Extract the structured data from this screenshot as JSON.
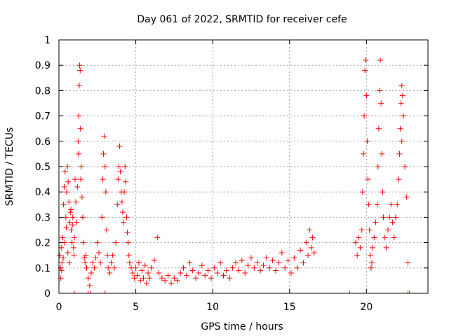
{
  "chart_data": {
    "type": "scatter",
    "title": "Day 061 of 2022, SRMTID for receiver cefe",
    "xlabel": "GPS time / hours",
    "ylabel": "SRMTID / TECUs",
    "xlim": [
      0,
      24
    ],
    "ylim": [
      0,
      1
    ],
    "x_ticks": [
      0,
      5,
      10,
      15,
      20
    ],
    "y_ticks": [
      0,
      0.1,
      0.2,
      0.3,
      0.4,
      0.5,
      0.6,
      0.7,
      0.8,
      0.9,
      1
    ],
    "x_tick_labels": [
      "0",
      "5",
      "10",
      "15",
      "20"
    ],
    "y_tick_labels": [
      "0",
      "0.1",
      "0.2",
      "0.3",
      "0.4",
      "0.5",
      "0.6",
      "0.7",
      "0.8",
      "0.9",
      "1"
    ],
    "grid": true,
    "marker": "plus",
    "color": "#ff0000",
    "series": [
      {
        "name": "SRMTID",
        "points": [
          [
            0.05,
            0.15
          ],
          [
            0.1,
            0.1
          ],
          [
            0.15,
            0.18
          ],
          [
            0.2,
            0.12
          ],
          [
            0.25,
            0.22
          ],
          [
            0.3,
            0.35
          ],
          [
            0.35,
            0.42
          ],
          [
            0.4,
            0.48
          ],
          [
            0.45,
            0.3
          ],
          [
            0.5,
            0.4
          ],
          [
            0.55,
            0.5
          ],
          [
            0.6,
            0.44
          ],
          [
            0.65,
            0.36
          ],
          [
            0.7,
            0.28
          ],
          [
            0.75,
            0.32
          ],
          [
            0.8,
            0.25
          ],
          [
            0.85,
            0.2
          ],
          [
            0.9,
            0.3
          ],
          [
            0.95,
            0.18
          ],
          [
            1.0,
            0.22
          ],
          [
            0.12,
            0.06
          ],
          [
            0.18,
            0.09
          ],
          [
            0.28,
            0.14
          ],
          [
            0.38,
            0.2
          ],
          [
            0.48,
            0.26
          ],
          [
            0.58,
            0.16
          ],
          [
            0.68,
            0.12
          ],
          [
            0.78,
            0.33
          ],
          [
            0.88,
            0.27
          ],
          [
            0.98,
            0.15
          ],
          [
            1.05,
            0.45
          ],
          [
            1.1,
            0.36
          ],
          [
            1.15,
            0.28
          ],
          [
            1.2,
            0.42
          ],
          [
            1.25,
            0.6
          ],
          [
            1.3,
            0.7
          ],
          [
            1.32,
            0.82
          ],
          [
            1.35,
            0.9
          ],
          [
            1.38,
            0.88
          ],
          [
            1.4,
            0.65
          ],
          [
            1.45,
            0.5
          ],
          [
            1.5,
            0.38
          ],
          [
            1.55,
            0.3
          ],
          [
            1.6,
            0.2
          ],
          [
            1.65,
            0.14
          ],
          [
            1.7,
            0.12
          ],
          [
            1.75,
            0.15
          ],
          [
            1.8,
            0.1
          ],
          [
            1.28,
            0.55
          ],
          [
            1.42,
            0.45
          ],
          [
            1.9,
            0.06
          ],
          [
            2.0,
            0.03
          ],
          [
            2.1,
            0.08
          ],
          [
            2.2,
            0.12
          ],
          [
            2.3,
            0.1
          ],
          [
            2.4,
            0.14
          ],
          [
            2.5,
            0.2
          ],
          [
            2.6,
            0.16
          ],
          [
            2.7,
            0.12
          ],
          [
            2.8,
            0.3
          ],
          [
            2.85,
            0.45
          ],
          [
            2.9,
            0.55
          ],
          [
            2.95,
            0.62
          ],
          [
            3.0,
            0.5
          ],
          [
            3.05,
            0.4
          ],
          [
            3.1,
            0.25
          ],
          [
            3.15,
            0.15
          ],
          [
            3.2,
            0.1
          ],
          [
            3.3,
            0.08
          ],
          [
            3.4,
            0.12
          ],
          [
            3.5,
            0.15
          ],
          [
            3.6,
            0.1
          ],
          [
            3.7,
            0.2
          ],
          [
            3.8,
            0.35
          ],
          [
            3.85,
            0.45
          ],
          [
            3.9,
            0.5
          ],
          [
            3.95,
            0.58
          ],
          [
            4.0,
            0.48
          ],
          [
            4.05,
            0.4
          ],
          [
            4.1,
            0.36
          ],
          [
            4.15,
            0.32
          ],
          [
            4.2,
            0.28
          ],
          [
            4.25,
            0.4
          ],
          [
            4.3,
            0.5
          ],
          [
            4.35,
            0.44
          ],
          [
            4.4,
            0.3
          ],
          [
            4.45,
            0.24
          ],
          [
            4.5,
            0.2
          ],
          [
            4.55,
            0.15
          ],
          [
            4.6,
            0.12
          ],
          [
            4.7,
            0.1
          ],
          [
            4.8,
            0.08
          ],
          [
            4.9,
            0.06
          ],
          [
            5.0,
            0.1
          ],
          [
            5.1,
            0.07
          ],
          [
            5.2,
            0.12
          ],
          [
            5.3,
            0.05
          ],
          [
            5.4,
            0.09
          ],
          [
            5.5,
            0.06
          ],
          [
            5.6,
            0.11
          ],
          [
            5.7,
            0.04
          ],
          [
            5.8,
            0.08
          ],
          [
            5.9,
            0.06
          ],
          [
            6.0,
            0.1
          ],
          [
            6.2,
            0.13
          ],
          [
            6.4,
            0.22
          ],
          [
            6.5,
            0.08
          ],
          [
            6.7,
            0.06
          ],
          [
            6.9,
            0.05
          ],
          [
            7.1,
            0.07
          ],
          [
            7.3,
            0.04
          ],
          [
            7.5,
            0.06
          ],
          [
            7.7,
            0.05
          ],
          [
            7.9,
            0.08
          ],
          [
            8.1,
            0.1
          ],
          [
            8.3,
            0.07
          ],
          [
            8.5,
            0.12
          ],
          [
            8.7,
            0.09
          ],
          [
            8.9,
            0.06
          ],
          [
            9.1,
            0.08
          ],
          [
            9.3,
            0.11
          ],
          [
            9.5,
            0.07
          ],
          [
            9.7,
            0.09
          ],
          [
            9.9,
            0.06
          ],
          [
            10.1,
            0.1
          ],
          [
            10.3,
            0.08
          ],
          [
            10.5,
            0.12
          ],
          [
            10.7,
            0.07
          ],
          [
            10.9,
            0.09
          ],
          [
            11.1,
            0.06
          ],
          [
            11.3,
            0.1
          ],
          [
            11.5,
            0.12
          ],
          [
            11.7,
            0.09
          ],
          [
            11.9,
            0.13
          ],
          [
            12.1,
            0.08
          ],
          [
            12.3,
            0.11
          ],
          [
            12.5,
            0.14
          ],
          [
            12.7,
            0.1
          ],
          [
            12.9,
            0.12
          ],
          [
            13.1,
            0.09
          ],
          [
            13.3,
            0.11
          ],
          [
            13.5,
            0.14
          ],
          [
            13.7,
            0.1
          ],
          [
            13.9,
            0.13
          ],
          [
            14.1,
            0.09
          ],
          [
            14.3,
            0.12
          ],
          [
            14.5,
            0.16
          ],
          [
            14.7,
            0.1
          ],
          [
            14.9,
            0.13
          ],
          [
            15.1,
            0.08
          ],
          [
            15.3,
            0.14
          ],
          [
            15.5,
            0.1
          ],
          [
            15.7,
            0.17
          ],
          [
            15.9,
            0.12
          ],
          [
            16.1,
            0.2
          ],
          [
            16.2,
            0.15
          ],
          [
            16.3,
            0.25
          ],
          [
            16.4,
            0.18
          ],
          [
            16.5,
            0.22
          ],
          [
            16.6,
            0.16
          ],
          [
            19.3,
            0.2
          ],
          [
            19.4,
            0.15
          ],
          [
            19.5,
            0.22
          ],
          [
            19.6,
            0.18
          ],
          [
            19.7,
            0.25
          ],
          [
            19.75,
            0.4
          ],
          [
            19.8,
            0.55
          ],
          [
            19.85,
            0.7
          ],
          [
            19.9,
            0.88
          ],
          [
            19.95,
            0.92
          ],
          [
            20.0,
            0.78
          ],
          [
            20.05,
            0.6
          ],
          [
            20.1,
            0.45
          ],
          [
            20.15,
            0.35
          ],
          [
            20.2,
            0.25
          ],
          [
            20.25,
            0.15
          ],
          [
            20.3,
            0.1
          ],
          [
            20.35,
            0.12
          ],
          [
            20.4,
            0.18
          ],
          [
            20.5,
            0.22
          ],
          [
            20.6,
            0.28
          ],
          [
            20.7,
            0.35
          ],
          [
            20.75,
            0.5
          ],
          [
            20.8,
            0.65
          ],
          [
            20.85,
            0.8
          ],
          [
            20.9,
            0.92
          ],
          [
            20.95,
            0.75
          ],
          [
            21.0,
            0.55
          ],
          [
            21.05,
            0.4
          ],
          [
            21.1,
            0.3
          ],
          [
            21.2,
            0.22
          ],
          [
            21.3,
            0.18
          ],
          [
            21.4,
            0.25
          ],
          [
            21.5,
            0.3
          ],
          [
            21.6,
            0.35
          ],
          [
            21.7,
            0.28
          ],
          [
            21.8,
            0.22
          ],
          [
            21.9,
            0.3
          ],
          [
            22.0,
            0.35
          ],
          [
            22.1,
            0.45
          ],
          [
            22.15,
            0.55
          ],
          [
            22.2,
            0.65
          ],
          [
            22.25,
            0.75
          ],
          [
            22.3,
            0.82
          ],
          [
            22.35,
            0.78
          ],
          [
            22.4,
            0.7
          ],
          [
            22.5,
            0.5
          ],
          [
            22.6,
            0.38
          ],
          [
            22.7,
            0.12
          ],
          [
            22.3,
            0.6
          ]
        ],
        "zero_markers": [
          1.0,
          1.9,
          2.05,
          3.0,
          18.9,
          22.7,
          22.8
        ]
      }
    ]
  }
}
